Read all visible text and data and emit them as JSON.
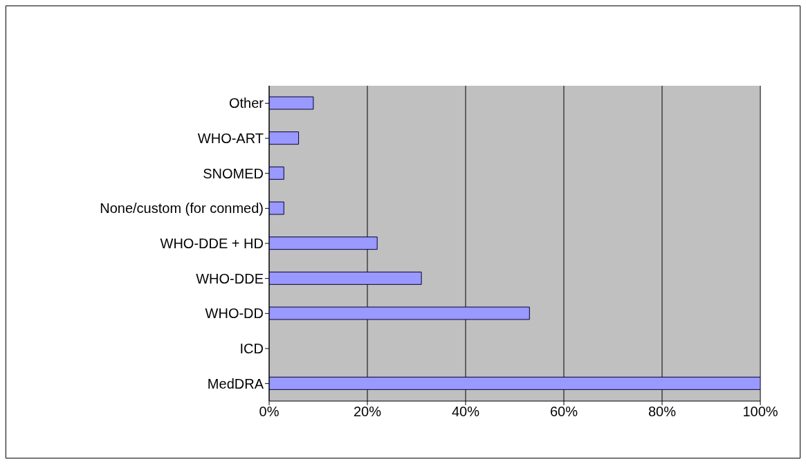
{
  "chart_data": {
    "type": "bar",
    "orientation": "horizontal",
    "categories": [
      "Other",
      "WHO-ART",
      "SNOMED",
      "None/custom (for conmed)",
      "WHO-DDE + HD",
      "WHO-DDE",
      "WHO-DD",
      "ICD",
      "MedDRA"
    ],
    "values": [
      9,
      6,
      3,
      3,
      22,
      31,
      53,
      0,
      100
    ],
    "color": "#9999ff",
    "xlim": [
      0,
      100
    ],
    "xticks": [
      {
        "value": 0,
        "label": "0%"
      },
      {
        "value": 20,
        "label": "20%"
      },
      {
        "value": 40,
        "label": "40%"
      },
      {
        "value": 60,
        "label": "60%"
      },
      {
        "value": 80,
        "label": "80%"
      },
      {
        "value": 100,
        "label": "100%"
      }
    ],
    "grid": "x",
    "legend": false
  }
}
